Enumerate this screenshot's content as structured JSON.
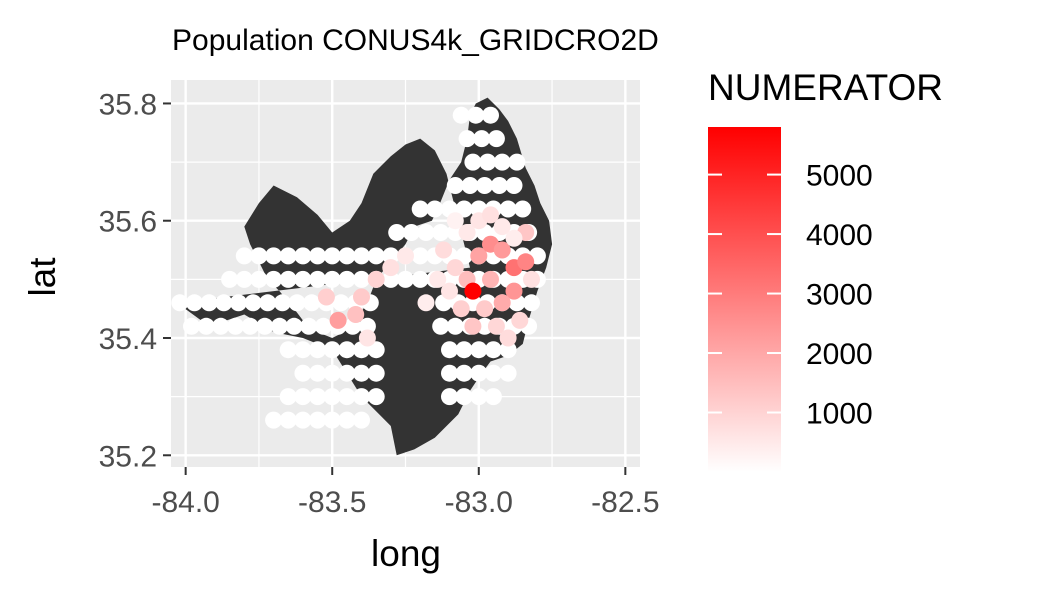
{
  "chart_data": {
    "type": "scatter",
    "title": "Population CONUS4k_GRIDCRO2D",
    "xlabel": "long",
    "ylabel": "lat",
    "xlim": [
      -84.05,
      -82.45
    ],
    "ylim": [
      35.18,
      35.84
    ],
    "x_ticks": [
      -84.0,
      -83.5,
      -83.0,
      -82.5
    ],
    "x_tick_labels": [
      "-84.0",
      "-83.5",
      "-83.0",
      "-82.5"
    ],
    "y_ticks": [
      35.2,
      35.4,
      35.6,
      35.8
    ],
    "y_tick_labels": [
      "35.2",
      "35.4",
      "35.6",
      "35.8"
    ],
    "grid": true,
    "legend": {
      "title": "NUMERATOR",
      "placement": "right",
      "range": [
        0,
        5800
      ],
      "low_color": "#ffffff",
      "high_color": "#ff0000",
      "breaks": [
        1000,
        2000,
        3000,
        4000,
        5000
      ],
      "break_labels": [
        "1000",
        "2000",
        "3000",
        "4000",
        "5000"
      ]
    },
    "region_outline": {
      "fill": "#333333",
      "lon": [
        -84.03,
        -83.92,
        -83.8,
        -83.7,
        -83.6,
        -83.5,
        -83.4,
        -83.3,
        -83.28,
        -83.22,
        -83.15,
        -83.07,
        -83.03,
        -82.99,
        -82.96,
        -82.9,
        -82.85,
        -82.83,
        -82.8,
        -82.77,
        -82.75,
        -82.76,
        -82.79,
        -82.81,
        -82.84,
        -82.87,
        -82.9,
        -82.93,
        -82.97,
        -83.01,
        -83.03,
        -83.04,
        -83.06,
        -83.1,
        -83.14,
        -83.16,
        -83.22,
        -83.25,
        -83.3,
        -83.35,
        -83.38,
        -83.42,
        -83.44,
        -83.46,
        -83.5,
        -83.55,
        -83.6,
        -83.63,
        -83.68,
        -83.72,
        -83.75,
        -83.78,
        -83.8,
        -83.75,
        -83.7,
        -83.62,
        -83.55,
        -83.5,
        -83.44,
        -83.4,
        -83.36,
        -83.3,
        -83.25,
        -83.2,
        -83.15,
        -83.11,
        -83.07,
        -83.03
      ],
      "lat": [
        35.46,
        35.42,
        35.44,
        35.41,
        35.4,
        35.38,
        35.3,
        35.25,
        35.2,
        35.21,
        35.23,
        35.27,
        35.31,
        35.34,
        35.36,
        35.37,
        35.39,
        35.43,
        35.48,
        35.52,
        35.56,
        35.6,
        35.63,
        35.66,
        35.69,
        35.74,
        35.77,
        35.79,
        35.81,
        35.8,
        35.78,
        35.74,
        35.7,
        35.67,
        35.62,
        35.6,
        35.59,
        35.56,
        35.53,
        35.5,
        35.46,
        35.43,
        35.42,
        35.41,
        35.4,
        35.41,
        35.43,
        35.45,
        35.48,
        35.5,
        35.53,
        35.56,
        35.59,
        35.63,
        35.66,
        35.64,
        35.61,
        35.58,
        35.6,
        35.63,
        35.68,
        35.71,
        35.73,
        35.74,
        35.72,
        35.68,
        35.6,
        35.52
      ]
    },
    "points": {
      "lon": [
        -83.0,
        -82.96,
        -82.92,
        -82.88,
        -82.84,
        -83.04,
        -82.96,
        -82.88,
        -82.92,
        -83.08,
        -83.12,
        -82.84,
        -83.42,
        -83.48,
        -83.52,
        -83.4,
        -83.3,
        -83.25,
        -83.35,
        -83.38,
        -83.02,
        -83.06,
        -82.98,
        -82.94,
        -82.9,
        -82.86,
        -83.1,
        -83.14,
        -83.18,
        -82.82,
        -83.0,
        -82.96,
        -82.92,
        -82.88,
        -83.04,
        -83.08
      ],
      "lat": [
        35.54,
        35.56,
        35.55,
        35.52,
        35.53,
        35.5,
        35.5,
        35.48,
        35.46,
        35.52,
        35.55,
        35.58,
        35.44,
        35.43,
        35.47,
        35.47,
        35.52,
        35.54,
        35.5,
        35.4,
        35.42,
        35.45,
        35.45,
        35.42,
        35.4,
        35.43,
        35.48,
        35.5,
        35.46,
        35.5,
        35.6,
        35.61,
        35.59,
        35.57,
        35.58,
        35.6
      ],
      "value": [
        2100,
        2600,
        2300,
        3200,
        2800,
        1500,
        1700,
        2400,
        1900,
        900,
        800,
        1300,
        1400,
        2200,
        1100,
        1200,
        700,
        500,
        1000,
        600,
        1300,
        1100,
        1200,
        900,
        800,
        900,
        600,
        500,
        400,
        700,
        600,
        700,
        500,
        400,
        500,
        300
      ]
    },
    "highlight_point": {
      "lon": -83.02,
      "lat": 35.48,
      "value": 5800
    }
  }
}
